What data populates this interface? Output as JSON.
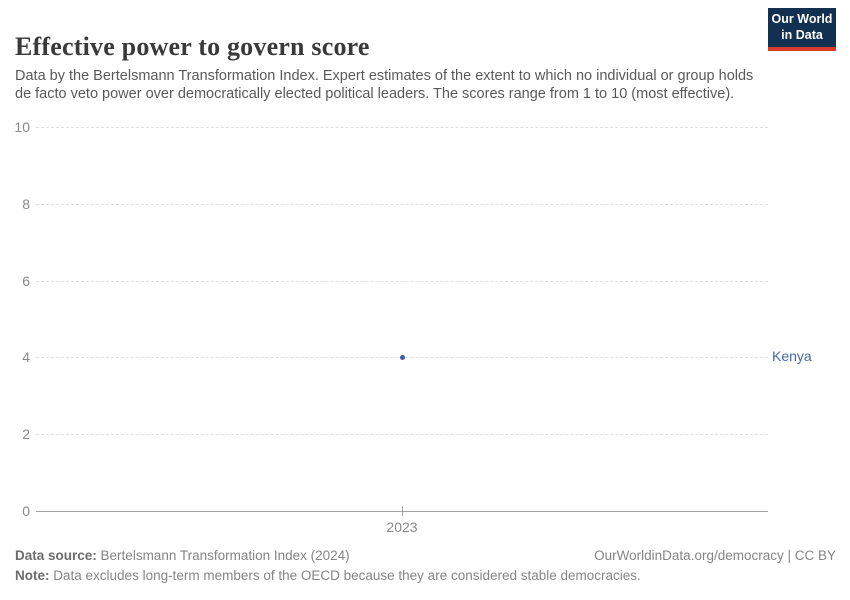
{
  "header": {
    "title": "Effective power to govern score",
    "subtitle": "Data by the Bertelsmann Transformation Index. Expert estimates of the extent to which no individual or group holds de facto veto power over democratically elected political leaders. The scores range from 1 to 10 (most effective).",
    "logo": {
      "line1": "Our World",
      "line2": "in Data",
      "bg_color": "#12304f",
      "accent_color": "#d93a2b"
    }
  },
  "chart_data": {
    "type": "scatter",
    "title": "Effective power to govern score",
    "x": [
      2023
    ],
    "series": [
      {
        "name": "Kenya",
        "values": [
          4
        ],
        "color": "#3d5fa8"
      }
    ],
    "x_tick_labels": [
      "2023"
    ],
    "y_ticks": [
      0,
      2,
      4,
      6,
      8,
      10
    ],
    "ylim": [
      0,
      10
    ],
    "xlabel": "",
    "ylabel": "",
    "grid": "horizontal-dashed",
    "legend": "entity-label-right-of-plot",
    "entity_label": "Kenya",
    "entity_label_color": "#4a69a8"
  },
  "footer": {
    "source_label": "Data source:",
    "source_text": "Bertelsmann Transformation Index (2024)",
    "attribution": "OurWorldinData.org/democracy | CC BY",
    "note_label": "Note:",
    "note_text": "Data excludes long-term members of the OECD because they are considered stable democracies."
  }
}
